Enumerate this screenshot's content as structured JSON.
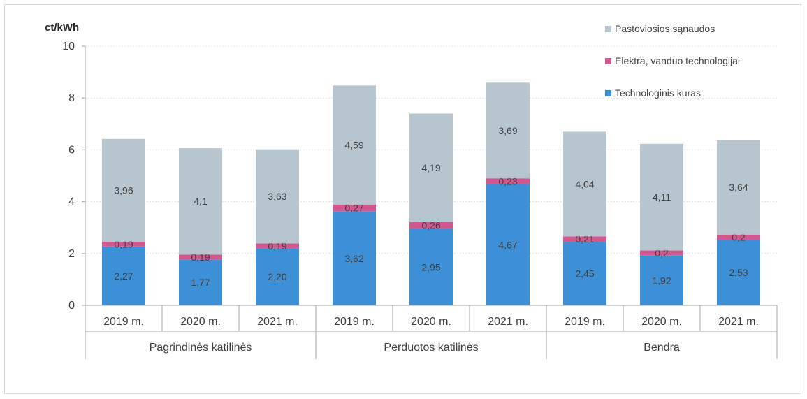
{
  "chart_data": {
    "type": "bar",
    "stacked": true,
    "ylabel": "ct/kWh",
    "ylim": [
      0,
      10
    ],
    "yticks": [
      "0",
      "2",
      "4",
      "6",
      "8",
      "10"
    ],
    "grid": true,
    "legend_position": "top-right",
    "groups": [
      {
        "label": "Pagrindinės katilinės",
        "categories": [
          "2019 m.",
          "2020 m.",
          "2021 m."
        ]
      },
      {
        "label": "Perduotos katilinės",
        "categories": [
          "2019 m.",
          "2020 m.",
          "2021 m."
        ]
      },
      {
        "label": "Bendra",
        "categories": [
          "2019 m.",
          "2020 m.",
          "2021 m."
        ]
      }
    ],
    "series": [
      {
        "name": "Technologinis kuras",
        "color": "#3d8fd6",
        "values": [
          2.27,
          1.77,
          2.2,
          3.62,
          2.95,
          4.67,
          2.45,
          1.92,
          2.53
        ],
        "labels": [
          "2,27",
          "1,77",
          "2,20",
          "3,62",
          "2,95",
          "4,67",
          "2,45",
          "1,92",
          "2,53"
        ]
      },
      {
        "name": "Elektra, vanduo technologijai",
        "color": "#d1578f",
        "values": [
          0.19,
          0.19,
          0.19,
          0.27,
          0.26,
          0.23,
          0.21,
          0.2,
          0.2
        ],
        "labels": [
          "0,19",
          "0,19",
          "0,19",
          "0,27",
          "0,26",
          "0,23",
          "0,21",
          "0,2",
          "0,2"
        ]
      },
      {
        "name": "Pastoviosios sąnaudos",
        "color": "#b7c6ce",
        "values": [
          3.96,
          4.1,
          3.63,
          4.59,
          4.19,
          3.69,
          4.04,
          4.11,
          3.64
        ],
        "labels": [
          "3,96",
          "4,1",
          "3,63",
          "4,59",
          "4,19",
          "3,69",
          "4,04",
          "4,11",
          "3,64"
        ]
      }
    ],
    "legend_order": [
      "Pastoviosios sąnaudos",
      "Elektra, vanduo technologijai",
      "Technologinis kuras"
    ]
  }
}
